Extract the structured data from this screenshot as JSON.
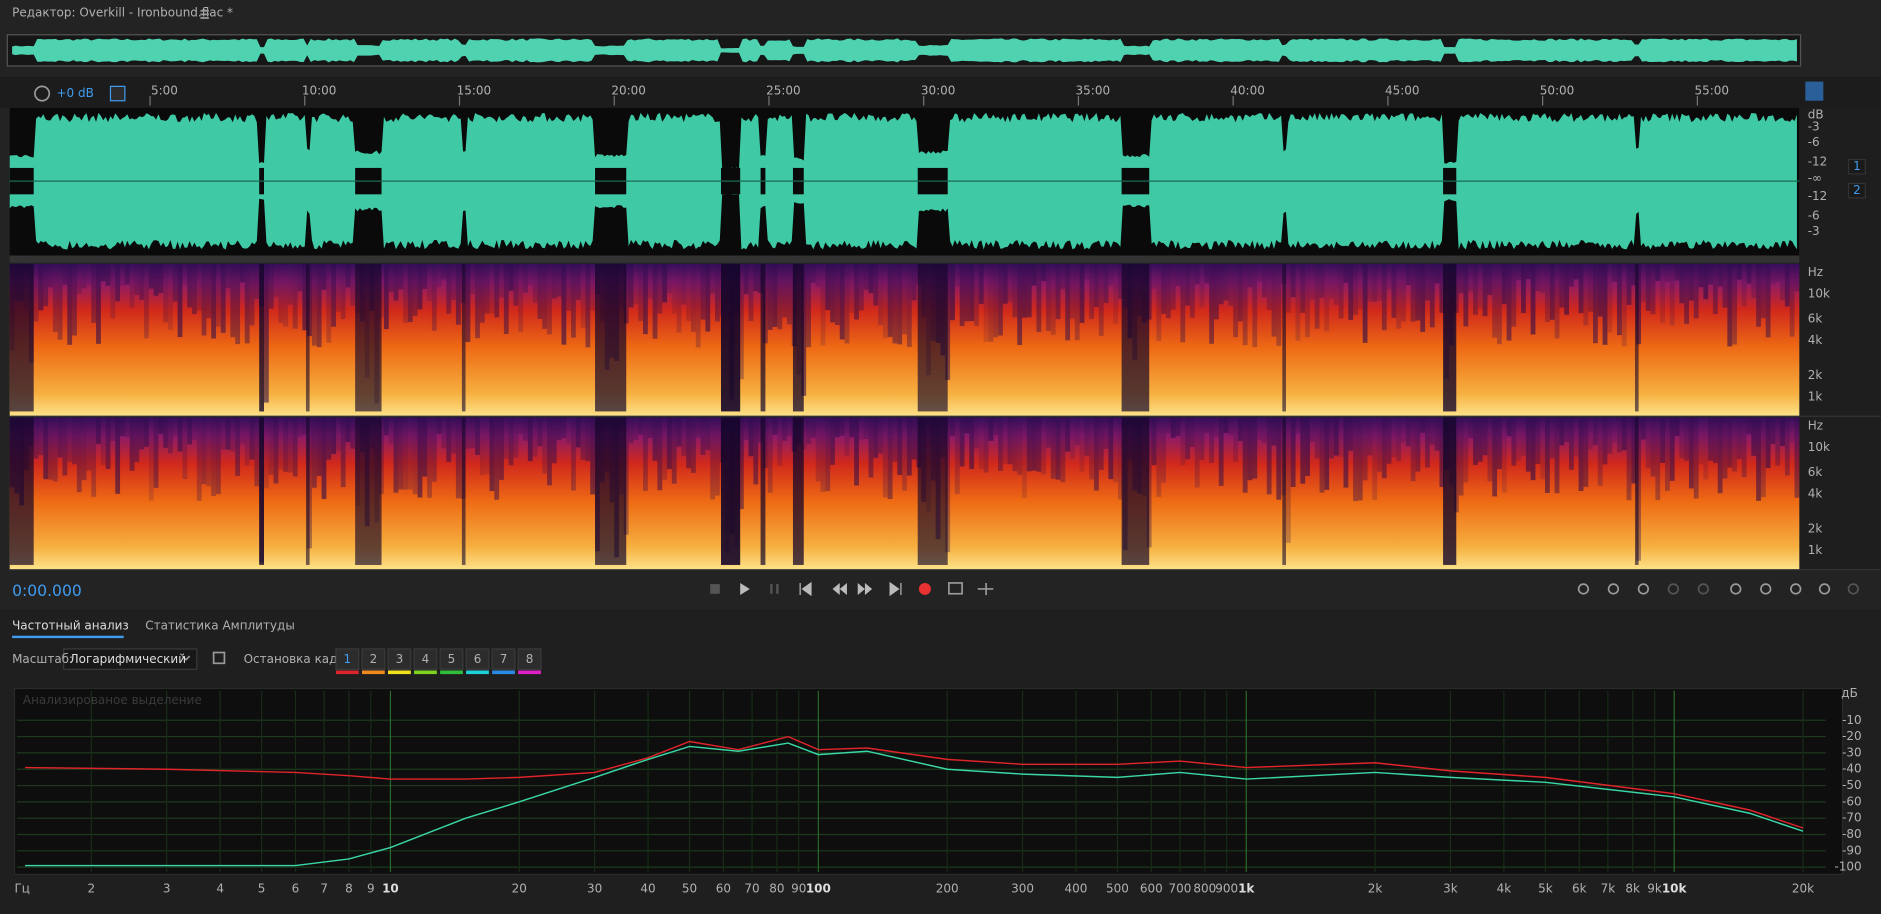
{
  "header": {
    "title": "Редактор: Overkill - Ironbound.flac *"
  },
  "toolbar": {
    "gain": "+0 dB"
  },
  "timeline": {
    "ticks": [
      "5:00",
      "10:00",
      "15:00",
      "20:00",
      "25:00",
      "30:00",
      "35:00",
      "40:00",
      "45:00",
      "50:00",
      "55:00"
    ]
  },
  "waveform": {
    "scale_unit": "dB",
    "scale": [
      "-3",
      "-6",
      "-12",
      "-∞",
      "-12",
      "-6",
      "-3"
    ],
    "channels": [
      "1",
      "2"
    ]
  },
  "spectrogram": {
    "tracks": [
      {
        "unit": "Hz",
        "ticks": [
          "10k",
          "6k",
          "4k",
          "2k",
          "1k"
        ]
      },
      {
        "unit": "Hz",
        "ticks": [
          "10k",
          "6k",
          "4k",
          "2k",
          "1k"
        ]
      }
    ]
  },
  "transport": {
    "time": "0:00.000"
  },
  "panel": {
    "tabs": [
      "Частотный анализ",
      "Статистика Амплитуды"
    ],
    "scale_label": "Масштаб:",
    "scale_value": "Логарифмический",
    "freeze_label": "Остановка кадра:",
    "frames": [
      "1",
      "2",
      "3",
      "4",
      "5",
      "6",
      "7",
      "8"
    ],
    "frame_colors": [
      "#d8262c",
      "#ef8a1e",
      "#f2e21e",
      "#7ed321",
      "#2fbf3a",
      "#1fd0d8",
      "#2a8ae6",
      "#e020c8"
    ]
  },
  "spectrum": {
    "type": "line",
    "annotation": "Анализированое выделение",
    "x_unit": "Гц",
    "y_unit": "дБ",
    "log_x": true,
    "grid": true,
    "xlim": [
      1.34,
      22600
    ],
    "ylim": [
      -103,
      8
    ],
    "xticks": [
      2,
      3,
      4,
      5,
      6,
      7,
      8,
      9,
      10,
      20,
      30,
      40,
      50,
      60,
      70,
      80,
      90,
      100,
      200,
      300,
      400,
      500,
      600,
      700,
      800,
      900,
      {
        "value": 1000,
        "label": "1k"
      },
      {
        "value": 2000,
        "label": "2k"
      },
      {
        "value": 3000,
        "label": "3k"
      },
      {
        "value": 4000,
        "label": "4k"
      },
      {
        "value": 5000,
        "label": "5k"
      },
      {
        "value": 6000,
        "label": "6k"
      },
      {
        "value": 7000,
        "label": "7k"
      },
      {
        "value": 8000,
        "label": "8k"
      },
      {
        "value": 9000,
        "label": "9k"
      },
      {
        "value": 10000,
        "label": "10k"
      },
      {
        "value": 20000,
        "label": "20k"
      }
    ],
    "yticks": [
      -10,
      -20,
      -30,
      -40,
      -50,
      -60,
      -70,
      -80,
      -90,
      -100
    ],
    "x": [
      1.4,
      3,
      6,
      8,
      10,
      15,
      20,
      30,
      40,
      50,
      65,
      85,
      100,
      130,
      200,
      300,
      500,
      700,
      1000,
      2000,
      3000,
      5000,
      10000,
      15000,
      20000
    ],
    "series": [
      {
        "color": "#e0242a",
        "values": [
          -39,
          -40,
          -42,
          -44,
          -46,
          -46,
          -45,
          -42,
          -33,
          -23,
          -28,
          -20,
          -28,
          -27,
          -34,
          -37,
          -37,
          -35,
          -39,
          -36,
          -41,
          -45,
          -55,
          -65,
          -76
        ]
      },
      {
        "color": "#3ad6a6",
        "values": [
          -99,
          -99,
          -99,
          -95,
          -88,
          -70,
          -60,
          -45,
          -34,
          -26,
          -29,
          -24,
          -31,
          -29,
          -40,
          -43,
          -45,
          -42,
          -46,
          -42,
          -45,
          -48,
          -57,
          -67,
          -78
        ]
      }
    ]
  }
}
